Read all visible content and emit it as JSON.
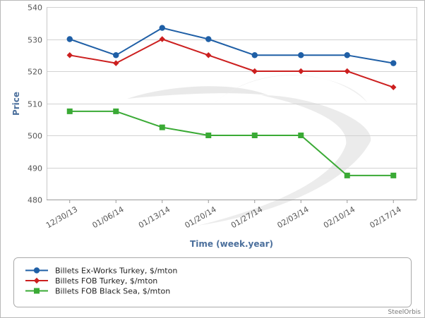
{
  "chart_data": {
    "type": "line",
    "categories": [
      "12/30/13",
      "01/06/14",
      "01/13/14",
      "01/20/14",
      "01/27/14",
      "02/03/14",
      "02/10/14",
      "02/17/14"
    ],
    "xlabel": "Time (week.year)",
    "ylabel": "Price",
    "ylim": [
      480,
      540
    ],
    "yticks": [
      480,
      490,
      500,
      510,
      520,
      530,
      540
    ],
    "grid": "horizontal",
    "legend_position": "bottom",
    "series": [
      {
        "name": "Billets Ex-Works Turkey, $/mton",
        "color": "#1f5fa6",
        "marker": "circle",
        "values": [
          530,
          525,
          533.5,
          530,
          525,
          525,
          525,
          522.5
        ]
      },
      {
        "name": "Billets FOB Turkey, $/mton",
        "color": "#cc1f1f",
        "marker": "diamond",
        "values": [
          525,
          522.5,
          530,
          525,
          520,
          520,
          520,
          515
        ]
      },
      {
        "name": "Billets FOB Black Sea, $/mton",
        "color": "#3aaa35",
        "marker": "square",
        "values": [
          507.5,
          507.5,
          502.5,
          500,
          500,
          500,
          487.5,
          487.5
        ]
      }
    ],
    "credit": "SteelOrbis"
  }
}
